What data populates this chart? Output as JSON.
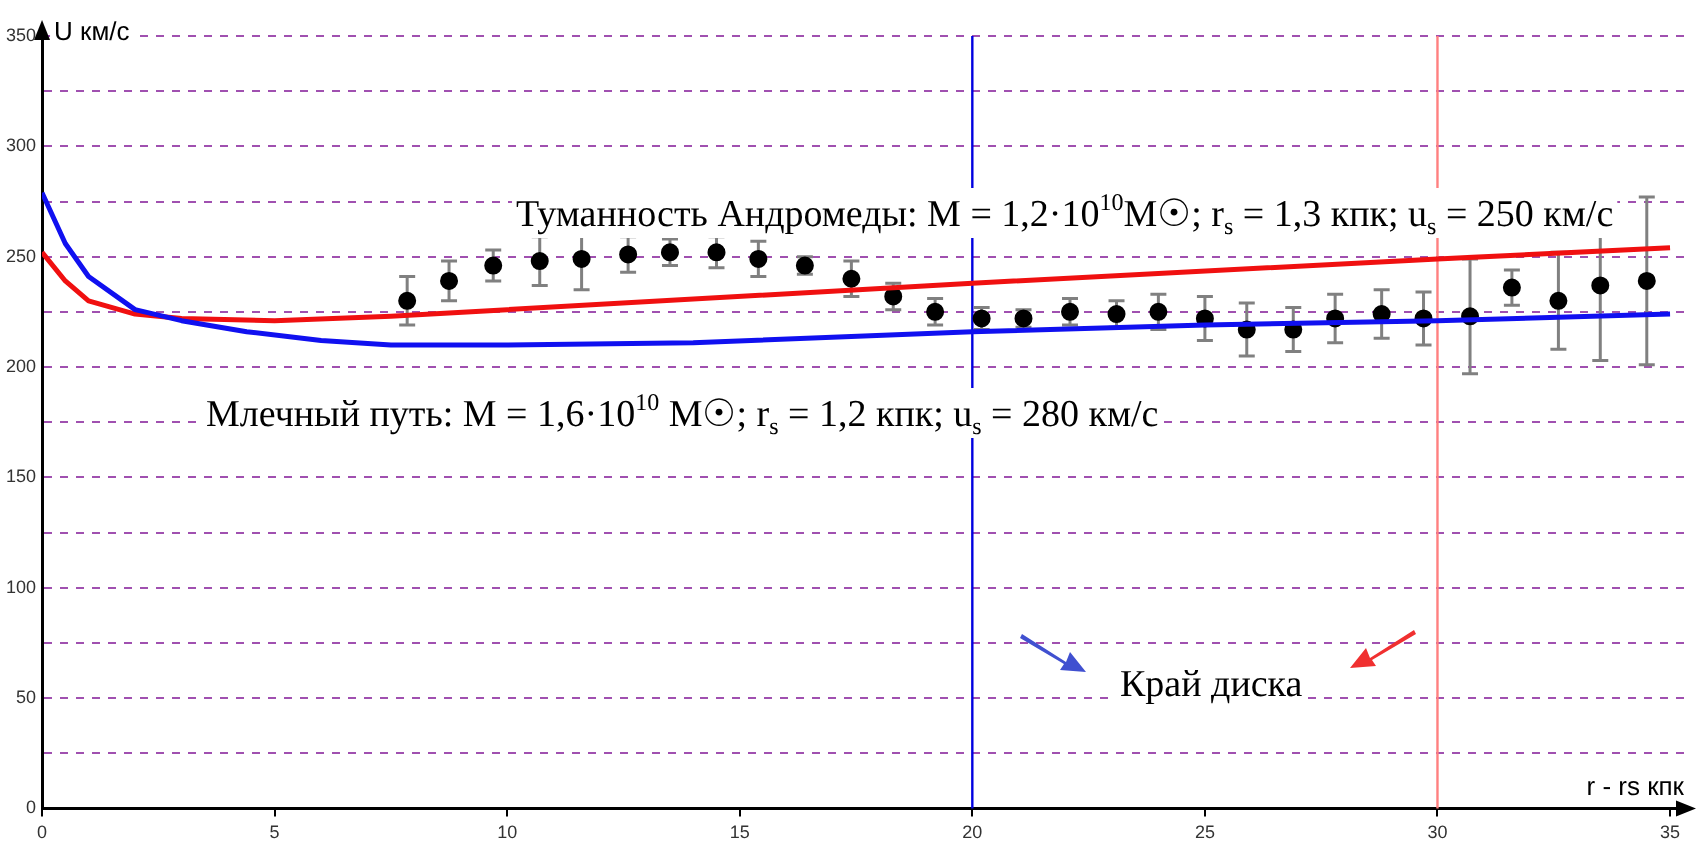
{
  "chart_data": {
    "type": "scatter",
    "xlabel": "r - rs кпк",
    "ylabel": "U км/с",
    "xlim": [
      0,
      35.3
    ],
    "xticks": [
      0,
      5,
      10,
      15,
      20,
      25,
      30,
      35
    ],
    "ylim": [
      0,
      350
    ],
    "yticks": [
      0,
      {
        "value": 25,
        "label": null
      },
      50,
      {
        "value": 75,
        "label": null
      },
      100,
      {
        "value": 125,
        "label": null
      },
      150,
      {
        "value": 175,
        "label": null
      },
      200,
      {
        "value": 225,
        "label": null
      },
      250,
      {
        "value": 275,
        "label": null
      },
      300,
      {
        "value": 325,
        "label": null
      },
      350
    ],
    "grid": "y",
    "legend": false,
    "series": [
      {
        "type": "line",
        "color": "#1010f0",
        "marker": "none",
        "x": [
          0,
          0.5,
          1,
          2,
          3,
          4.4,
          6,
          7.5,
          10,
          14,
          20,
          25,
          30,
          35
        ],
        "values": [
          279,
          256,
          241,
          226,
          221,
          216,
          212,
          210,
          210,
          211,
          216,
          219,
          221,
          224
        ]
      },
      {
        "type": "line",
        "color": "#f01010",
        "marker": "none",
        "x": [
          0,
          0.5,
          1,
          2,
          3,
          5,
          7.5,
          10,
          20,
          30,
          35
        ],
        "values": [
          252,
          239,
          230,
          224,
          222,
          221,
          223,
          226,
          238,
          249,
          254
        ]
      },
      {
        "color": "#000000",
        "marker": "circle",
        "x": [
          7.85,
          8.75,
          9.7,
          10.7,
          11.6,
          12.6,
          13.5,
          14.5,
          15.4,
          16.4,
          17.4,
          18.3,
          19.2,
          20.2,
          21.1,
          22.1,
          23.1,
          24.0,
          25.0,
          25.9,
          26.9,
          27.8,
          28.8,
          29.7,
          30.7,
          31.6,
          32.6,
          33.5,
          34.5
        ],
        "values": [
          230,
          239,
          246,
          248,
          249,
          251,
          252,
          252,
          249,
          246,
          240,
          232,
          225,
          222,
          222,
          225,
          224,
          225,
          222,
          217,
          217,
          222,
          224,
          222,
          223,
          236,
          230,
          237,
          239
        ],
        "errors": [
          11,
          9,
          7,
          11,
          14,
          8,
          6,
          7,
          8,
          4,
          8,
          6,
          6,
          5,
          4,
          6,
          6,
          8,
          10,
          12,
          10,
          11,
          11,
          12,
          26,
          8,
          22,
          34,
          38
        ]
      }
    ],
    "ref_lines": [
      {
        "axis": "x",
        "value": 20,
        "color": "#0000e0"
      },
      {
        "axis": "x",
        "value": 30,
        "color": "#ff8080"
      }
    ],
    "annotations": [
      "Туманность Андромеды: M = 1,2·10$^{10}$M☉; r$_{s}$ = 1,3 кпк; u$_{s}$ = 250 км/с",
      "Млечный путь: M = 1,6·10$^{10}$ M☉; r$_{s}$ = 1,2 кпк; u$_{s}$ = 280 км/с",
      "Край диска"
    ]
  }
}
